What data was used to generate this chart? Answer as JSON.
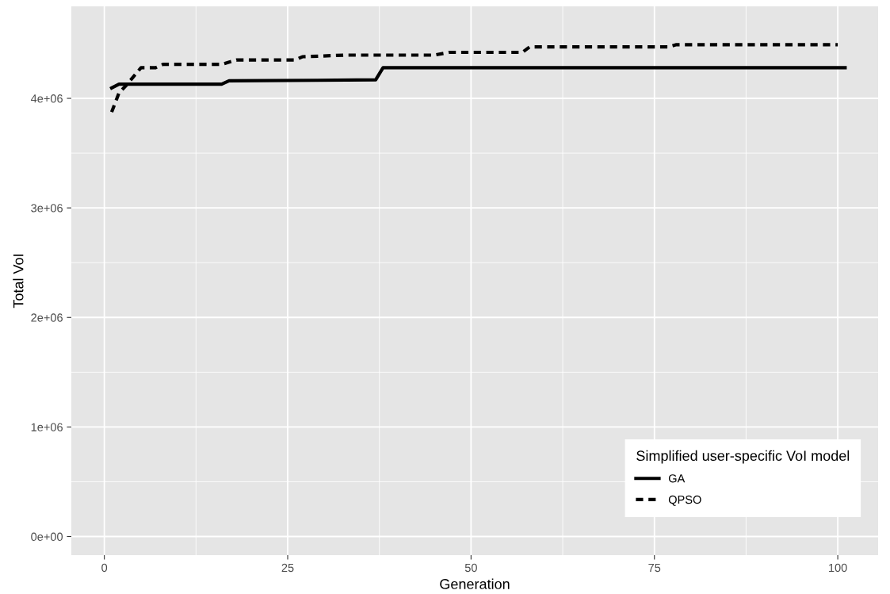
{
  "chart_data": {
    "type": "line",
    "xlabel": "Generation",
    "ylabel": "Total VoI",
    "legend_title": "Simplified user-specific VoI model",
    "xlim": [
      -4.5,
      105.5
    ],
    "ylim": [
      -170000,
      4840000
    ],
    "xticks": [
      0,
      25,
      50,
      75,
      100
    ],
    "yticks": [
      {
        "value": 0,
        "label": "0e+00"
      },
      {
        "value": 1000000,
        "label": "1e+06"
      },
      {
        "value": 2000000,
        "label": "2e+06"
      },
      {
        "value": 3000000,
        "label": "3e+06"
      },
      {
        "value": 4000000,
        "label": "4e+06"
      }
    ],
    "grid": true,
    "legend": "bottom right",
    "series": [
      {
        "name": "GA",
        "color": "#000000",
        "line_style": "solid",
        "x": [
          1,
          2,
          16,
          17,
          29,
          37,
          38,
          101
        ],
        "values": [
          4095000,
          4130000,
          4130000,
          4160000,
          4165000,
          4170000,
          4280000,
          4280000
        ]
      },
      {
        "name": "QPSO",
        "color": "#000000",
        "line_style": "dashed",
        "x": [
          1,
          2,
          3,
          4,
          5,
          7,
          8,
          16,
          18,
          26,
          27,
          33,
          45,
          47,
          57,
          58,
          77,
          78,
          100
        ],
        "values": [
          3875000,
          4050000,
          4120000,
          4200000,
          4280000,
          4280000,
          4310000,
          4310000,
          4350000,
          4350000,
          4380000,
          4395000,
          4395000,
          4420000,
          4420000,
          4470000,
          4470000,
          4490000,
          4490000
        ]
      }
    ]
  }
}
